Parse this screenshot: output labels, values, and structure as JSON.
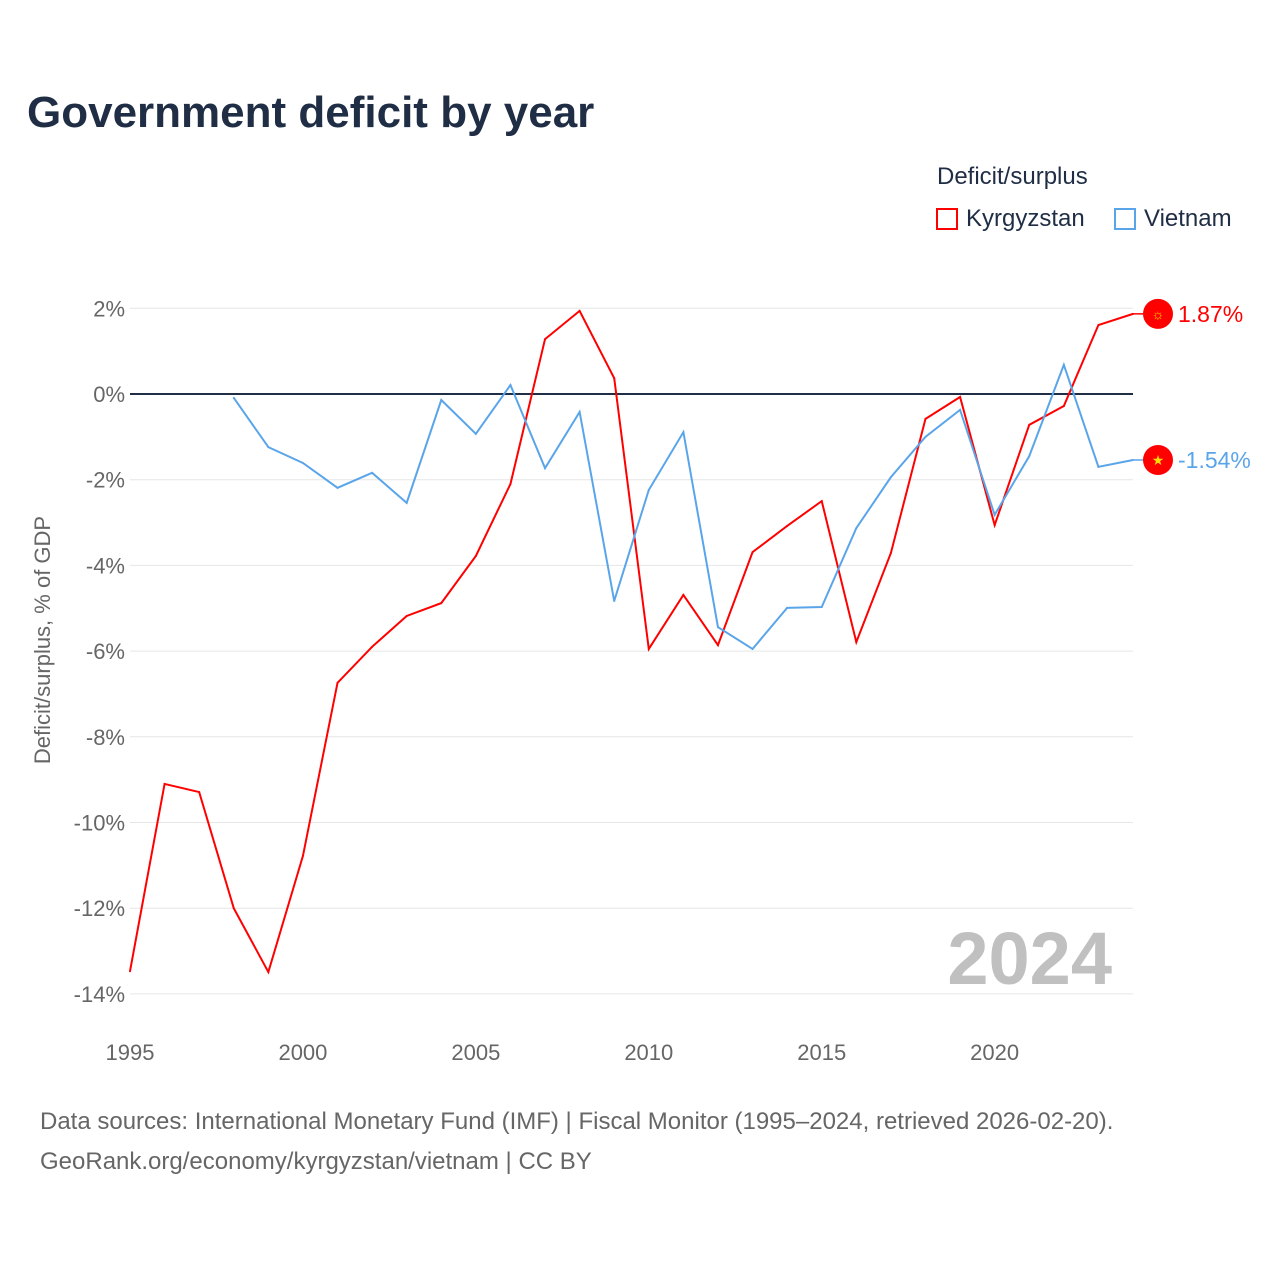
{
  "title": "Government deficit by year",
  "legend": {
    "title": "Deficit/surplus",
    "items": [
      {
        "label": "Kyrgyzstan",
        "color": "#ff0000"
      },
      {
        "label": "Vietnam",
        "color": "#5aa5ea"
      }
    ]
  },
  "footer": {
    "line1": "Data sources: International Monetary Fund (IMF) | Fiscal Monitor (1995–2024, retrieved 2026-02-20).",
    "line2": "GeoRank.org/economy/kyrgyzstan/vietnam | CC BY"
  },
  "chart_data": {
    "type": "line",
    "title": "Government deficit by year",
    "ylabel": "Deficit/surplus, % of GDP",
    "xlabel": "",
    "xlim": [
      1995,
      2024
    ],
    "ylim": [
      -14,
      2
    ],
    "xticks": [
      1995,
      2000,
      2005,
      2010,
      2015,
      2020
    ],
    "yticks": [
      2,
      0,
      -2,
      -4,
      -6,
      -8,
      -10,
      -12,
      -14
    ],
    "ytick_labels": [
      "2%",
      "0%",
      "-2%",
      "-4%",
      "-6%",
      "-8%",
      "-10%",
      "-12%",
      "-14%"
    ],
    "watermark_year": "2024",
    "series": [
      {
        "name": "Kyrgyzstan",
        "color": "#ff0000",
        "end_label": "1.87%",
        "x": [
          1995,
          1996,
          1997,
          1998,
          1999,
          2000,
          2001,
          2002,
          2003,
          2004,
          2005,
          2006,
          2007,
          2008,
          2009,
          2010,
          2011,
          2012,
          2013,
          2014,
          2015,
          2016,
          2017,
          2018,
          2019,
          2020,
          2021,
          2022,
          2023,
          2024
        ],
        "values": [
          -13.47,
          -9.1,
          -9.29,
          -12.0,
          -13.49,
          -10.78,
          -6.74,
          -5.9,
          -5.18,
          -4.88,
          -3.78,
          -2.1,
          1.28,
          1.94,
          0.37,
          -5.95,
          -4.69,
          -5.86,
          -3.69,
          -3.08,
          -2.5,
          -5.79,
          -3.71,
          -0.58,
          -0.07,
          -3.06,
          -0.72,
          -0.28,
          1.61,
          1.87
        ]
      },
      {
        "name": "Vietnam",
        "color": "#5aa5ea",
        "end_label": "-1.54%",
        "x": [
          1998,
          1999,
          2000,
          2001,
          2002,
          2003,
          2004,
          2005,
          2006,
          2007,
          2008,
          2009,
          2010,
          2011,
          2012,
          2013,
          2014,
          2015,
          2016,
          2017,
          2018,
          2019,
          2020,
          2021,
          2022,
          2023,
          2024
        ],
        "values": [
          -0.09,
          -1.24,
          -1.61,
          -2.19,
          -1.84,
          -2.54,
          -0.14,
          -0.93,
          0.21,
          -1.73,
          -0.42,
          -4.83,
          -2.24,
          -0.89,
          -5.44,
          -5.95,
          -4.99,
          -4.97,
          -3.13,
          -1.94,
          -1.0,
          -0.37,
          -2.82,
          -1.45,
          0.68,
          -1.7,
          -1.54
        ]
      }
    ]
  }
}
